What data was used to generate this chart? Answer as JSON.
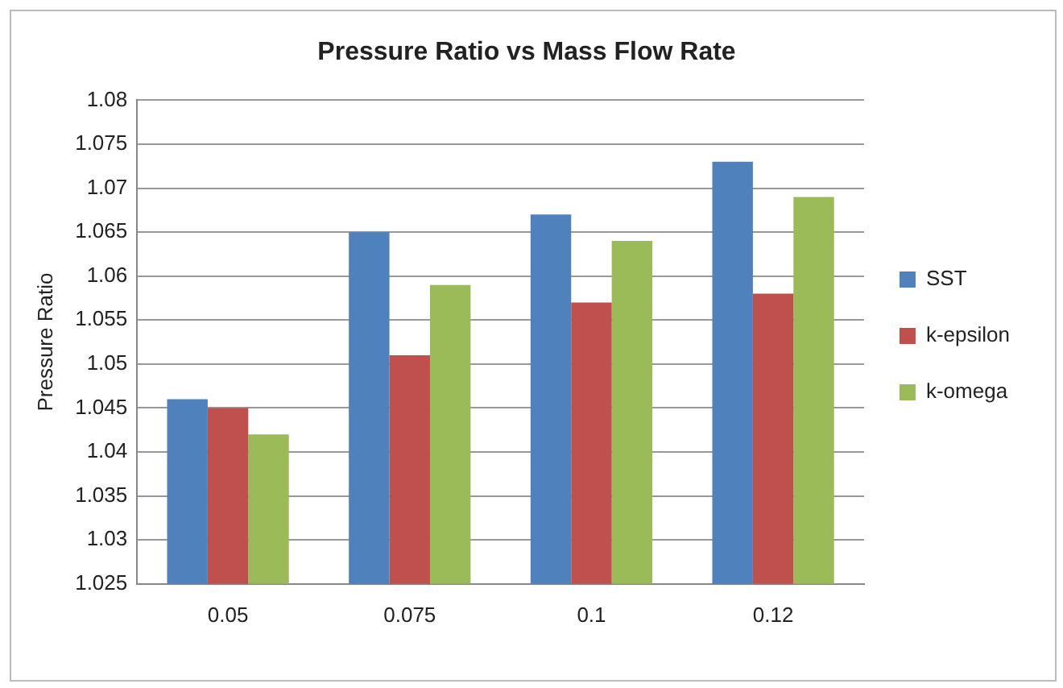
{
  "chart_data": {
    "type": "bar",
    "title": "Pressure Ratio vs Mass Flow Rate",
    "ylabel": "Pressure Ratio",
    "categories": [
      "0.05",
      "0.075",
      "0.1",
      "0.12"
    ],
    "series": [
      {
        "name": "SST",
        "color": "#4f81bd",
        "values": [
          1.046,
          1.065,
          1.067,
          1.073
        ]
      },
      {
        "name": "k-epsilon",
        "color": "#c0504d",
        "values": [
          1.045,
          1.051,
          1.057,
          1.058
        ]
      },
      {
        "name": "k-omega",
        "color": "#9bbb59",
        "values": [
          1.042,
          1.059,
          1.064,
          1.069
        ]
      }
    ],
    "ylim": [
      1.025,
      1.08
    ],
    "yticks": [
      1.025,
      1.03,
      1.035,
      1.04,
      1.045,
      1.05,
      1.055,
      1.06,
      1.065,
      1.07,
      1.075,
      1.08
    ],
    "grid": "y",
    "legend": "right"
  }
}
